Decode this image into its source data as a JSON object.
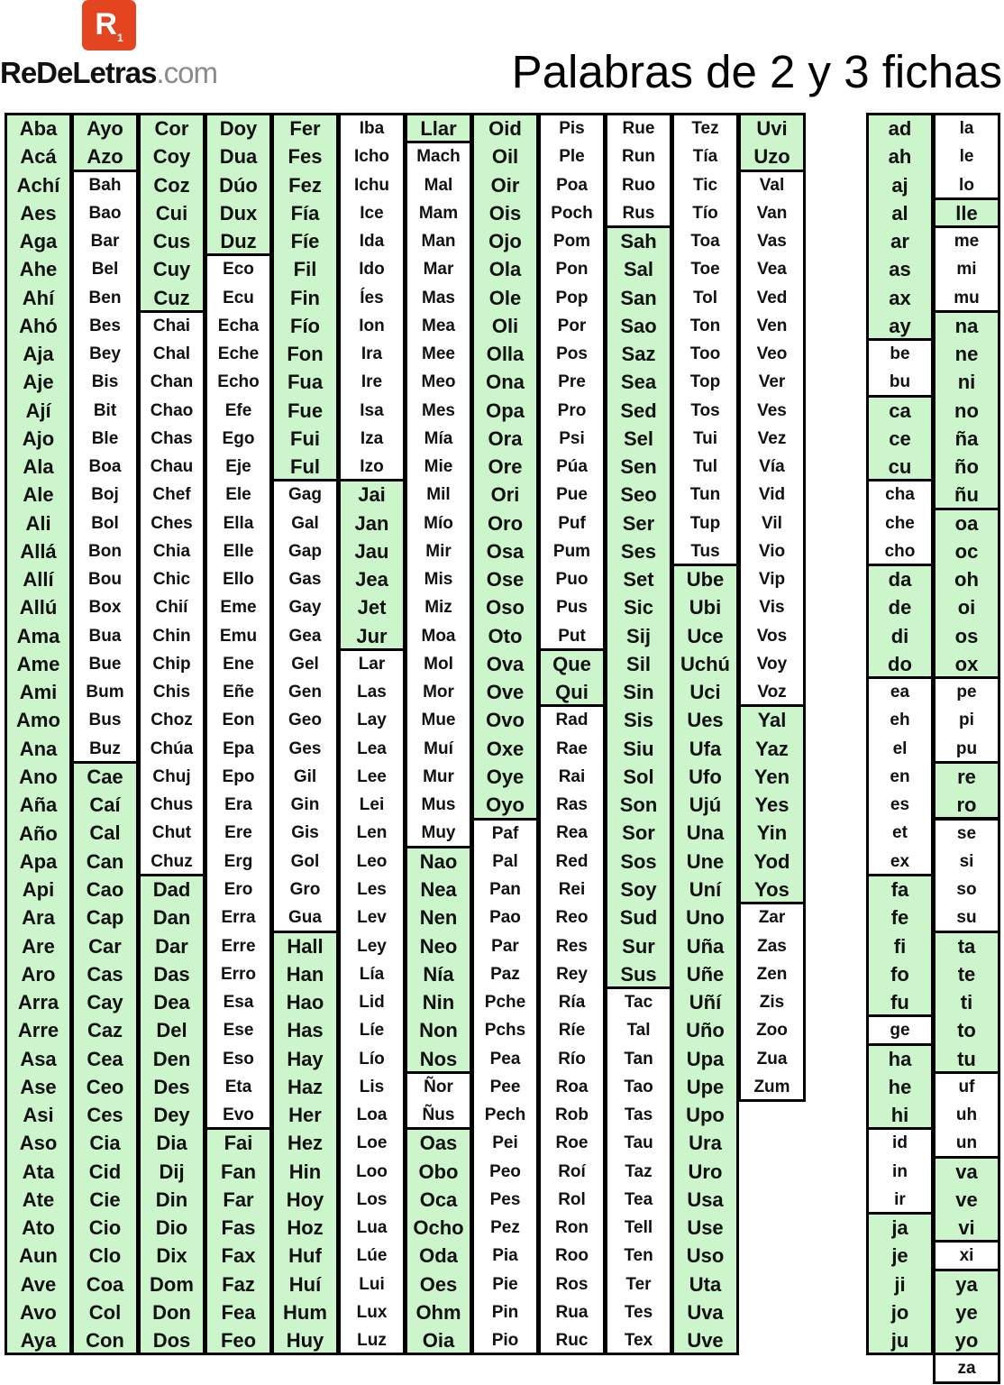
{
  "header": {
    "logo": {
      "letter": "R",
      "subscript": "1"
    },
    "site": {
      "name": "ReDeLetras",
      "domain": ".com"
    },
    "title": "Palabras de 2 y 3 fichas"
  },
  "columns": [
    [
      {
        "fill": "#ccf5cc",
        "words": [
          "Aba",
          "Acá",
          "Achí",
          "Aes",
          "Aga",
          "Ahe",
          "Ahí",
          "Ahó",
          "Aja",
          "Aje",
          "Ají",
          "Ajo",
          "Ala",
          "Ale",
          "Ali",
          "Allá",
          "Allí",
          "Allú",
          "Ama",
          "Ame",
          "Ami",
          "Amo",
          "Ana",
          "Ano",
          "Aña",
          "Año",
          "Apa",
          "Api",
          "Ara",
          "Are",
          "Aro",
          "Arra",
          "Arre",
          "Asa",
          "Ase",
          "Asi",
          "Aso",
          "Ata",
          "Ate",
          "Ato",
          "Aun",
          "Ave",
          "Avo",
          "Aya"
        ]
      }
    ],
    [
      {
        "fill": "#ccf5cc",
        "words": [
          "Ayo",
          "Azo"
        ]
      },
      {
        "fill": "#ffffff",
        "words": [
          "Bah",
          "Bao",
          "Bar",
          "Bel",
          "Ben",
          "Bes",
          "Bey",
          "Bis",
          "Bit",
          "Ble",
          "Boa",
          "Boj",
          "Bol",
          "Bon",
          "Bou",
          "Box",
          "Bua",
          "Bue",
          "Bum",
          "Bus",
          "Buz"
        ]
      },
      {
        "fill": "#ccf5cc",
        "words": [
          "Cae",
          "Caí",
          "Cal",
          "Can",
          "Cao",
          "Cap",
          "Car",
          "Cas",
          "Cay",
          "Caz",
          "Cea",
          "Ceo",
          "Ces",
          "Cia",
          "Cid",
          "Cie",
          "Cio",
          "Clo",
          "Coa",
          "Col",
          "Con"
        ]
      }
    ],
    [
      {
        "fill": "#ccf5cc",
        "words": [
          "Cor",
          "Coy",
          "Coz",
          "Cui",
          "Cus",
          "Cuy",
          "Cuz"
        ]
      },
      {
        "fill": "#ffffff",
        "words": [
          "Chai",
          "Chal",
          "Chan",
          "Chao",
          "Chas",
          "Chau",
          "Chef",
          "Ches",
          "Chia",
          "Chic",
          "Chií",
          "Chin",
          "Chip",
          "Chis",
          "Choz",
          "Chúa",
          "Chuj",
          "Chus",
          "Chut",
          "Chuz"
        ]
      },
      {
        "fill": "#ccf5cc",
        "words": [
          "Dad",
          "Dan",
          "Dar",
          "Das",
          "Dea",
          "Del",
          "Den",
          "Des",
          "Dey",
          "Dia",
          "Dij",
          "Din",
          "Dio",
          "Dix",
          "Dom",
          "Don",
          "Dos"
        ]
      }
    ],
    [
      {
        "fill": "#ccf5cc",
        "words": [
          "Doy",
          "Dua",
          "Dúo",
          "Dux",
          "Duz"
        ]
      },
      {
        "fill": "#ffffff",
        "words": [
          "Eco",
          "Ecu",
          "Echa",
          "Eche",
          "Echo",
          "Efe",
          "Ego",
          "Eje",
          "Ele",
          "Ella",
          "Elle",
          "Ello",
          "Eme",
          "Emu",
          "Ene",
          "Eñe",
          "Eon",
          "Epa",
          "Epo",
          "Era",
          "Ere",
          "Erg",
          "Ero",
          "Erra",
          "Erre",
          "Erro",
          "Esa",
          "Ese",
          "Eso",
          "Eta",
          "Evo"
        ]
      },
      {
        "fill": "#ccf5cc",
        "words": [
          "Fai",
          "Fan",
          "Far",
          "Fas",
          "Fax",
          "Faz",
          "Fea",
          "Feo"
        ]
      }
    ],
    [
      {
        "fill": "#ccf5cc",
        "words": [
          "Fer",
          "Fes",
          "Fez",
          "Fía",
          "Fíe",
          "Fil",
          "Fin",
          "Fío",
          "Fon",
          "Fua",
          "Fue",
          "Fui",
          "Ful"
        ]
      },
      {
        "fill": "#ffffff",
        "words": [
          "Gag",
          "Gal",
          "Gap",
          "Gas",
          "Gay",
          "Gea",
          "Gel",
          "Gen",
          "Geo",
          "Ges",
          "Gil",
          "Gin",
          "Gis",
          "Gol",
          "Gro",
          "Gua"
        ]
      },
      {
        "fill": "#ccf5cc",
        "words": [
          "Hall",
          "Han",
          "Hao",
          "Has",
          "Hay",
          "Haz",
          "Her",
          "Hez",
          "Hin",
          "Hoy",
          "Hoz",
          "Huf",
          "Huí",
          "Hum",
          "Huy"
        ]
      }
    ],
    [
      {
        "fill": "#ffffff",
        "words": [
          "Iba",
          "Icho",
          "Ichu",
          "Ice",
          "Ida",
          "Ido",
          "Íes",
          "Ion",
          "Ira",
          "Ire",
          "Isa",
          "Iza",
          "Izo"
        ]
      },
      {
        "fill": "#ccf5cc",
        "words": [
          "Jai",
          "Jan",
          "Jau",
          "Jea",
          "Jet",
          "Jur"
        ]
      },
      {
        "fill": "#ffffff",
        "words": [
          "Lar",
          "Las",
          "Lay",
          "Lea",
          "Lee",
          "Lei",
          "Len",
          "Leo",
          "Les",
          "Lev",
          "Ley",
          "Lía",
          "Lid",
          "Líe",
          "Lío",
          "Lis",
          "Loa",
          "Loe",
          "Loo",
          "Los",
          "Lua",
          "Lúe",
          "Lui",
          "Lux",
          "Luz"
        ]
      }
    ],
    [
      {
        "fill": "#ccf5cc",
        "words": [
          "Llar"
        ]
      },
      {
        "fill": "#ffffff",
        "words": [
          "Mach",
          "Mal",
          "Mam",
          "Man",
          "Mar",
          "Mas",
          "Mea",
          "Mee",
          "Meo",
          "Mes",
          "Mía",
          "Mie",
          "Mil",
          "Mío",
          "Mir",
          "Mis",
          "Miz",
          "Moa",
          "Mol",
          "Mor",
          "Mue",
          "Muí",
          "Mur",
          "Mus",
          "Muy"
        ]
      },
      {
        "fill": "#ccf5cc",
        "words": [
          "Nao",
          "Nea",
          "Nen",
          "Neo",
          "Nía",
          "Nin",
          "Non",
          "Nos"
        ]
      },
      {
        "fill": "#ffffff",
        "words": [
          "Ñor",
          "Ñus"
        ]
      },
      {
        "fill": "#ccf5cc",
        "words": [
          "Oas",
          "Obo",
          "Oca",
          "Ocho",
          "Oda",
          "Oes",
          "Ohm",
          "Oia"
        ]
      }
    ],
    [
      {
        "fill": "#ccf5cc",
        "words": [
          "Oid",
          "Oil",
          "Oir",
          "Ois",
          "Ojo",
          "Ola",
          "Ole",
          "Oli",
          "Olla",
          "Ona",
          "Opa",
          "Ora",
          "Ore",
          "Ori",
          "Oro",
          "Osa",
          "Ose",
          "Oso",
          "Oto",
          "Ova",
          "Ove",
          "Ovo",
          "Oxe",
          "Oye",
          "Oyo"
        ]
      },
      {
        "fill": "#ffffff",
        "words": [
          "Paf",
          "Pal",
          "Pan",
          "Pao",
          "Par",
          "Paz",
          "Pche",
          "Pchs",
          "Pea",
          "Pee",
          "Pech",
          "Pei",
          "Peo",
          "Pes",
          "Pez",
          "Pia",
          "Pie",
          "Pin",
          "Pio"
        ]
      }
    ],
    [
      {
        "fill": "#ffffff",
        "words": [
          "Pis",
          "Ple",
          "Poa",
          "Poch",
          "Pom",
          "Pon",
          "Pop",
          "Por",
          "Pos",
          "Pre",
          "Pro",
          "Psi",
          "Púa",
          "Pue",
          "Puf",
          "Pum",
          "Puo",
          "Pus",
          "Put"
        ]
      },
      {
        "fill": "#ccf5cc",
        "words": [
          "Que",
          "Qui"
        ]
      },
      {
        "fill": "#ffffff",
        "words": [
          "Rad",
          "Rae",
          "Rai",
          "Ras",
          "Rea",
          "Red",
          "Rei",
          "Reo",
          "Res",
          "Rey",
          "Ría",
          "Ríe",
          "Río",
          "Roa",
          "Rob",
          "Roe",
          "Roí",
          "Rol",
          "Ron",
          "Roo",
          "Ros",
          "Rua",
          "Ruc"
        ]
      }
    ],
    [
      {
        "fill": "#ffffff",
        "words": [
          "Rue",
          "Run",
          "Ruo",
          "Rus"
        ]
      },
      {
        "fill": "#ccf5cc",
        "words": [
          "Sah",
          "Sal",
          "San",
          "Sao",
          "Saz",
          "Sea",
          "Sed",
          "Sel",
          "Sen",
          "Seo",
          "Ser",
          "Ses",
          "Set",
          "Sic",
          "Sij",
          "Sil",
          "Sin",
          "Sis",
          "Siu",
          "Sol",
          "Son",
          "Sor",
          "Sos",
          "Soy",
          "Sud",
          "Sur",
          "Sus"
        ]
      },
      {
        "fill": "#ffffff",
        "words": [
          "Tac",
          "Tal",
          "Tan",
          "Tao",
          "Tas",
          "Tau",
          "Taz",
          "Tea",
          "Tell",
          "Ten",
          "Ter",
          "Tes",
          "Tex"
        ]
      }
    ],
    [
      {
        "fill": "#ffffff",
        "words": [
          "Tez",
          "Tía",
          "Tic",
          "Tío",
          "Toa",
          "Toe",
          "Tol",
          "Ton",
          "Too",
          "Top",
          "Tos",
          "Tui",
          "Tul",
          "Tun",
          "Tup",
          "Tus"
        ]
      },
      {
        "fill": "#ccf5cc",
        "words": [
          "Ube",
          "Ubi",
          "Uce",
          "Uchú",
          "Uci",
          "Ues",
          "Ufa",
          "Ufo",
          "Ujú",
          "Una",
          "Une",
          "Uní",
          "Uno",
          "Uña",
          "Uñe",
          "Uñí",
          "Uño",
          "Upa",
          "Upe",
          "Upo",
          "Ura",
          "Uro",
          "Usa",
          "Use",
          "Uso",
          "Uta",
          "Uva",
          "Uve"
        ]
      }
    ],
    [
      {
        "fill": "#ccf5cc",
        "words": [
          "Uvi",
          "Uzo"
        ]
      },
      {
        "fill": "#ffffff",
        "words": [
          "Val",
          "Van",
          "Vas",
          "Vea",
          "Ved",
          "Ven",
          "Veo",
          "Ver",
          "Ves",
          "Vez",
          "Vía",
          "Vid",
          "Vil",
          "Vio",
          "Vip",
          "Vis",
          "Vos",
          "Voy",
          "Voz"
        ]
      },
      {
        "fill": "#ccf5cc",
        "words": [
          "Yal",
          "Yaz",
          "Yen",
          "Yes",
          "Yin",
          "Yod",
          "Yos"
        ]
      },
      {
        "fill": "#ffffff",
        "words": [
          "Zar",
          "Zas",
          "Zen",
          "Zis",
          "Zoo",
          "Zua",
          "Zum"
        ]
      }
    ],
    [
      {
        "fill": "#ccf5cc",
        "words": [
          "ad",
          "ah",
          "aj",
          "al",
          "ar",
          "as",
          "ax",
          "ay"
        ]
      },
      {
        "fill": "#ffffff",
        "words": [
          "be",
          "bu"
        ]
      },
      {
        "fill": "#ccf5cc",
        "words": [
          "ca",
          "ce",
          "cu"
        ]
      },
      {
        "fill": "#ffffff",
        "words": [
          "cha",
          "che",
          "cho"
        ]
      },
      {
        "fill": "#ccf5cc",
        "words": [
          "da",
          "de",
          "di",
          "do"
        ]
      },
      {
        "fill": "#ffffff",
        "words": [
          "ea",
          "eh",
          "el",
          "en",
          "es",
          "et",
          "ex"
        ]
      },
      {
        "fill": "#ccf5cc",
        "words": [
          "fa",
          "fe",
          "fi",
          "fo",
          "fu"
        ]
      },
      {
        "fill": "#ffffff",
        "words": [
          "ge"
        ]
      },
      {
        "fill": "#ccf5cc",
        "words": [
          "ha",
          "he",
          "hi"
        ]
      },
      {
        "fill": "#ffffff",
        "words": [
          "id",
          "in",
          "ir"
        ]
      },
      {
        "fill": "#ccf5cc",
        "words": [
          "ja",
          "je",
          "ji",
          "jo",
          "ju"
        ]
      }
    ],
    [
      {
        "fill": "#ffffff",
        "words": [
          "la",
          "le",
          "lo"
        ]
      },
      {
        "fill": "#ccf5cc",
        "words": [
          "lle"
        ]
      },
      {
        "fill": "#ffffff",
        "words": [
          "me",
          "mi",
          "mu"
        ]
      },
      {
        "fill": "#ccf5cc",
        "words": [
          "na",
          "ne",
          "ni",
          "no",
          "ña",
          "ño",
          "ñu"
        ]
      },
      {
        "fill": "#ccf5cc",
        "words": [
          "oa",
          "oc",
          "oh",
          "oi",
          "os",
          "ox"
        ]
      },
      {
        "fill": "#ffffff",
        "words": [
          "pe",
          "pi",
          "pu"
        ]
      },
      {
        "fill": "#ccf5cc",
        "words": [
          "re",
          "ro"
        ]
      },
      {
        "fill": "#ffffff",
        "words": [
          "se",
          "si",
          "so",
          "su"
        ]
      },
      {
        "fill": "#ccf5cc",
        "words": [
          "ta",
          "te",
          "ti",
          "to",
          "tu"
        ]
      },
      {
        "fill": "#ffffff",
        "words": [
          "uf",
          "uh",
          "un"
        ]
      },
      {
        "fill": "#ccf5cc",
        "words": [
          "va",
          "ve",
          "vi"
        ]
      },
      {
        "fill": "#ffffff",
        "words": [
          "xi"
        ]
      },
      {
        "fill": "#ccf5cc",
        "words": [
          "ya",
          "ye",
          "yo"
        ]
      },
      {
        "fill": "#ffffff",
        "words": [
          "za"
        ]
      }
    ]
  ]
}
